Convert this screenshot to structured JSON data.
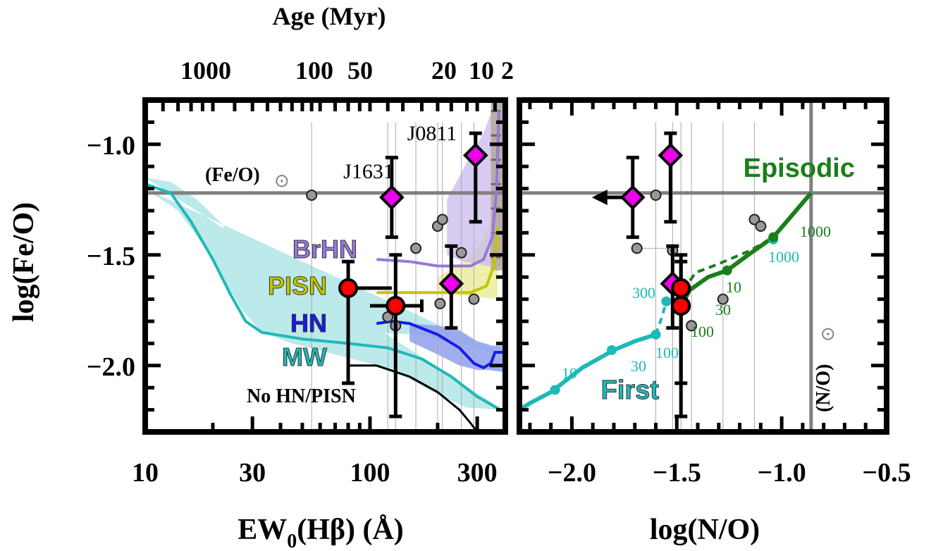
{
  "colors": {
    "sun": "#808080",
    "mw": "#1fb8b8",
    "mw_band": "#b0e5e5",
    "hn": "#1a1ae6",
    "hn_band": "#8fa0ee",
    "pisn": "#c4c400",
    "pisn_band": "#ecec9e",
    "brhn": "#9678d8",
    "brhn_band": "#c9b9ee",
    "episodic": "#1a7f1a",
    "first": "#1fb8b8",
    "diamond": "#ee00ee",
    "red": "#ff0000",
    "gray_point": "#999999"
  },
  "chart_data": [
    {
      "type": "line",
      "xlabel": "EW0(Hβ) (Å)",
      "xlabel_main": "EW",
      "xlabel_sub": "0",
      "xlabel_rest": "(Hβ) (Å)",
      "ylabel": "log(Fe/O)",
      "xscale": "log",
      "xlim": [
        10,
        400
      ],
      "ylim": [
        -2.3,
        -0.8
      ],
      "xticks": [
        10,
        30,
        100,
        300
      ],
      "xtick_labels": [
        "10",
        "30",
        "100",
        "300"
      ],
      "yticks": [
        -1.0,
        -1.5,
        -2.0
      ],
      "ytick_labels": [
        "−1.0",
        "−1.5",
        "−2.0"
      ],
      "top_axis": {
        "label": "Age (Myr)",
        "tick_labels": [
          "1000",
          "100",
          "50",
          "20",
          "10",
          "2"
        ],
        "tick_ew": [
          20,
          60,
          90,
          200,
          270,
          360
        ]
      },
      "solar_fe_o": -1.22,
      "solar_label": "(Fe/O)",
      "solar_symbol": "⊙",
      "series": [
        {
          "name": "MW",
          "line": [
            [
              10,
              -1.18
            ],
            [
              13,
              -1.22
            ],
            [
              16,
              -1.35
            ],
            [
              20,
              -1.52
            ],
            [
              24,
              -1.68
            ],
            [
              28,
              -1.8
            ],
            [
              33,
              -1.85
            ],
            [
              50,
              -1.88
            ],
            [
              80,
              -1.9
            ],
            [
              120,
              -1.92
            ],
            [
              170,
              -1.97
            ],
            [
              230,
              -2.05
            ],
            [
              300,
              -2.14
            ],
            [
              380,
              -2.2
            ]
          ],
          "band_upper": [
            [
              10,
              -1.15
            ],
            [
              13,
              -1.17
            ],
            [
              17,
              -1.25
            ],
            [
              22,
              -1.36
            ],
            [
              27,
              -1.56
            ],
            [
              35,
              -1.75
            ],
            [
              60,
              -1.82
            ],
            [
              100,
              -1.85
            ],
            [
              160,
              -1.86
            ],
            [
              250,
              -1.9
            ],
            [
              330,
              -1.93
            ],
            [
              390,
              -1.95
            ]
          ],
          "band_lower": [
            [
              10,
              -1.2
            ],
            [
              14,
              -1.3
            ],
            [
              18,
              -1.45
            ],
            [
              22,
              -1.6
            ],
            [
              27,
              -1.75
            ],
            [
              33,
              -1.85
            ],
            [
              45,
              -1.9
            ],
            [
              70,
              -1.95
            ],
            [
              100,
              -1.99
            ],
            [
              150,
              -2.06
            ],
            [
              200,
              -2.13
            ],
            [
              270,
              -2.19
            ],
            [
              390,
              -2.2
            ]
          ]
        },
        {
          "name": "HN",
          "line": [
            [
              107,
              -1.81
            ],
            [
              125,
              -1.8
            ],
            [
              150,
              -1.81
            ],
            [
              200,
              -1.86
            ],
            [
              250,
              -1.92
            ],
            [
              290,
              -1.99
            ],
            [
              320,
              -2.01
            ],
            [
              345,
              -1.99
            ],
            [
              360,
              -1.94
            ],
            [
              395,
              -1.94
            ]
          ],
          "band_upper": [
            [
              150,
              -1.81
            ],
            [
              200,
              -1.82
            ],
            [
              250,
              -1.84
            ],
            [
              300,
              -1.89
            ],
            [
              350,
              -1.91
            ],
            [
              395,
              -1.91
            ]
          ],
          "band_lower": [
            [
              395,
              -2.03
            ],
            [
              340,
              -2.02
            ],
            [
              300,
              -2.02
            ],
            [
              250,
              -2.0
            ],
            [
              200,
              -1.95
            ],
            [
              150,
              -1.89
            ]
          ]
        },
        {
          "name": "PISN",
          "line": [
            [
              107,
              -1.67
            ],
            [
              150,
              -1.67
            ],
            [
              220,
              -1.67
            ],
            [
              280,
              -1.67
            ],
            [
              330,
              -1.64
            ],
            [
              355,
              -1.55
            ],
            [
              365,
              -1.45
            ],
            [
              368,
              -1.37
            ]
          ],
          "band_upper": [
            [
              200,
              -1.6
            ],
            [
              270,
              -1.52
            ],
            [
              320,
              -1.43
            ],
            [
              355,
              -1.32
            ],
            [
              370,
              -1.3
            ]
          ],
          "band_lower": [
            [
              370,
              -1.7
            ],
            [
              300,
              -1.69
            ],
            [
              250,
              -1.68
            ],
            [
              200,
              -1.66
            ]
          ]
        },
        {
          "name": "BrHN",
          "line": [
            [
              107,
              -1.52
            ],
            [
              150,
              -1.53
            ],
            [
              200,
              -1.55
            ],
            [
              280,
              -1.55
            ],
            [
              320,
              -1.52
            ],
            [
              350,
              -1.42
            ],
            [
              365,
              -1.22
            ],
            [
              372,
              -0.95
            ],
            [
              375,
              -0.85
            ]
          ],
          "band_upper": [
            [
              220,
              -1.25
            ],
            [
              280,
              -1.05
            ],
            [
              320,
              -0.95
            ],
            [
              345,
              -0.86
            ],
            [
              350,
              -0.8
            ],
            [
              400,
              -0.8
            ]
          ],
          "band_lower": [
            [
              400,
              -1.55
            ],
            [
              370,
              -1.55
            ],
            [
              330,
              -1.55
            ],
            [
              300,
              -1.54
            ],
            [
              260,
              -1.53
            ],
            [
              220,
              -1.5
            ]
          ]
        },
        {
          "name": "No HN/PISN",
          "line": [
            [
              107,
              -2.0
            ],
            [
              150,
              -2.05
            ],
            [
              200,
              -2.12
            ],
            [
              250,
              -2.2
            ],
            [
              280,
              -2.26
            ],
            [
              300,
              -2.3
            ]
          ]
        }
      ],
      "labeled_objects": [
        {
          "name": "J1631",
          "x": 125,
          "y": -1.24,
          "yerr": [
            0.18,
            0.18
          ]
        },
        {
          "name": "J0811",
          "x": 295,
          "y": -1.05,
          "yerr": [
            0.3,
            0.1
          ]
        }
      ],
      "diamonds": [
        {
          "x": 230,
          "y": -1.63,
          "yerr": [
            0.2,
            0.17
          ]
        }
      ],
      "red_points": [
        {
          "x": 80,
          "y": -1.65,
          "yerr": [
            0.43,
            0.12
          ],
          "xerr": [
            0,
            0
          ]
        },
        {
          "x": 130,
          "y": -1.73,
          "yerr": [
            0.5,
            0.23
          ],
          "xerr": [
            30,
            40
          ]
        }
      ],
      "gray_points": [
        [
          55,
          -1.23
        ],
        [
          160,
          -1.47
        ],
        [
          200,
          -1.37
        ],
        [
          210,
          -1.34
        ],
        [
          255,
          -1.49
        ],
        [
          205,
          -1.72
        ],
        [
          120,
          -1.78
        ],
        [
          130,
          -1.82
        ],
        [
          290,
          -1.7
        ]
      ]
    },
    {
      "type": "line",
      "xlabel": "log(N/O)",
      "ylabel": "log(Fe/O)",
      "xlim": [
        -2.25,
        -0.5
      ],
      "ylim": [
        -2.3,
        -0.8
      ],
      "xticks": [
        -2.0,
        -1.5,
        -1.0,
        -0.5
      ],
      "xtick_labels": [
        "−2.0",
        "−1.5",
        "−1.0",
        "−0.5"
      ],
      "solar_n_o": -0.86,
      "solar_label": "(N/O)",
      "solar_symbol": "⊙",
      "series": [
        {
          "name": "Episodic",
          "line": [
            [
              -1.47,
              -1.72
            ],
            [
              -1.44,
              -1.66
            ],
            [
              -1.35,
              -1.6
            ],
            [
              -1.26,
              -1.57
            ],
            [
              -1.16,
              -1.5
            ],
            [
              -1.04,
              -1.42
            ],
            [
              -0.86,
              -1.22
            ]
          ],
          "points": [
            [
              -1.26,
              -1.57
            ],
            [
              -1.04,
              -1.42
            ]
          ],
          "dashed": [
            [
              -1.47,
              -1.66
            ],
            [
              -1.41,
              -1.58
            ],
            [
              -1.3,
              -1.54
            ],
            [
              -1.15,
              -1.48
            ],
            [
              -1.04,
              -1.42
            ]
          ],
          "point_labels": [
            "1000",
            "10",
            "30",
            "100"
          ]
        },
        {
          "name": "First",
          "line": [
            [
              -2.25,
              -2.2
            ],
            [
              -2.2,
              -2.17
            ],
            [
              -2.1,
              -2.12
            ],
            [
              -1.95,
              -2.01
            ],
            [
              -1.8,
              -1.93
            ],
            [
              -1.7,
              -1.89
            ],
            [
              -1.6,
              -1.86
            ]
          ],
          "points": [
            [
              -2.08,
              -2.11
            ],
            [
              -1.81,
              -1.93
            ],
            [
              -1.6,
              -1.86
            ],
            [
              -1.55,
              -1.71
            ],
            [
              -1.04,
              -1.43
            ]
          ],
          "dashed": [
            [
              -1.6,
              -1.86
            ],
            [
              -1.57,
              -1.78
            ],
            [
              -1.55,
              -1.71
            ]
          ],
          "point_labels": [
            "10",
            "30",
            "100",
            "300",
            "1000"
          ]
        }
      ],
      "diamonds": [
        {
          "x": -1.71,
          "y": -1.24,
          "yerr": [
            0.18,
            0.18
          ],
          "upper_limit_arrow": true
        },
        {
          "x": -1.53,
          "y": -1.05,
          "yerr": [
            0.3,
            0.1
          ]
        },
        {
          "x": -1.52,
          "y": -1.63,
          "yerr": [
            0.2,
            0.17
          ]
        }
      ],
      "red_points": [
        {
          "x": -1.48,
          "y": -1.65,
          "yerr": [
            0.43,
            0.12
          ]
        },
        {
          "x": -1.48,
          "y": -1.73,
          "yerr": [
            0.5,
            0.23
          ]
        }
      ],
      "gray_points": [
        [
          -1.6,
          -1.23
        ],
        [
          -1.69,
          -1.47
        ],
        [
          -1.52,
          -1.48
        ],
        [
          -1.13,
          -1.34
        ],
        [
          -1.1,
          -1.37
        ],
        [
          -1.28,
          -1.7
        ],
        [
          -1.43,
          -1.82
        ],
        [
          -1.48,
          -1.75
        ]
      ]
    }
  ],
  "legend": {
    "brhn": "BrHN",
    "pisn": "PISN",
    "hn": "HN",
    "mw": "MW",
    "nohn": "No HN/PISN",
    "episodic": "Episodic",
    "first": "First"
  },
  "annot": {
    "j1631": "J1631",
    "j0811": "J0811",
    "ep_labels": [
      "1000",
      "10",
      "30",
      "100"
    ],
    "first_labels": [
      "10",
      "30",
      "100",
      "300",
      "1000"
    ]
  }
}
